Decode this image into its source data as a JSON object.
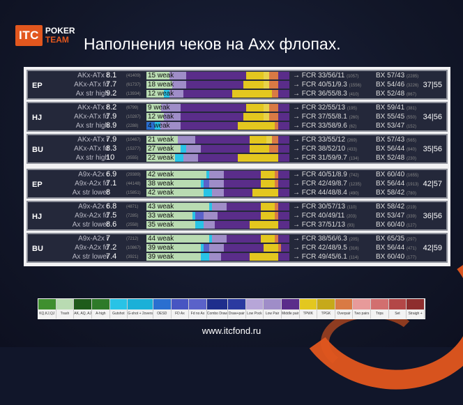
{
  "header": {
    "logo_itc": "ITC",
    "logo_line1": "POKER",
    "logo_line2": "TEAM",
    "title": "Наполнения чеков на Axx флопах."
  },
  "footer": {
    "url": "www.itcfond.ru"
  },
  "colors": {
    "weak": "#b9dbb2",
    "gutshot": "#29c3e6",
    "oesd": "#2a6fd0",
    "fd": "#5a62c9",
    "lowpair": "#9f8dc8",
    "midpair": "#5a2d8a",
    "tpwk": "#e3c71f",
    "tpgk": "#e8d24a",
    "overpair": "#d97a44"
  },
  "groups": [
    {
      "position": "EP",
      "pct": "37|55",
      "rows": [
        {
          "label": "AKx-ATx r",
          "value": "8.1",
          "count": "(41409)",
          "weak": "15 weak",
          "fcr": "→ FCR 33/56/11",
          "fcr_n": "(1057)",
          "bx": "BX 57/43",
          "bx_n": "(2285)",
          "segments": [
            {
              "c": "weak",
              "w": 16
            },
            {
              "c": "lowpair",
              "w": 12
            },
            {
              "c": "midpair",
              "w": 42
            },
            {
              "c": "tpwk",
              "w": 12
            },
            {
              "c": "tpgk",
              "w": 4
            },
            {
              "c": "overpair",
              "w": 6
            },
            {
              "c": "midpair",
              "w": 8
            }
          ]
        },
        {
          "label": "AKx-ATx fd",
          "value": "7.7",
          "count": "(61737)",
          "weak": "18 weak",
          "fcr": "→ FCR 40/51/9.3",
          "fcr_n": "(1556)",
          "bx": "BX 54/46",
          "bx_n": "(3226)",
          "segments": [
            {
              "c": "weak",
              "w": 18
            },
            {
              "c": "lowpair",
              "w": 10
            },
            {
              "c": "midpair",
              "w": 40
            },
            {
              "c": "tpwk",
              "w": 14
            },
            {
              "c": "tpgk",
              "w": 4
            },
            {
              "c": "overpair",
              "w": 6
            },
            {
              "c": "midpair",
              "w": 8
            }
          ]
        },
        {
          "label": "Ax str high",
          "value": "9.2",
          "count": "(13934)",
          "weak": "12 weak",
          "fcr": "→ FCR 36/55/8.3",
          "fcr_n": "(410)",
          "bx": "BX 52/48",
          "bx_n": "(867)",
          "segments": [
            {
              "c": "weak",
              "w": 12
            },
            {
              "c": "gutshot",
              "w": 4
            },
            {
              "c": "lowpair",
              "w": 10
            },
            {
              "c": "midpair",
              "w": 34
            },
            {
              "c": "tpwk",
              "w": 28
            },
            {
              "c": "overpair",
              "w": 4
            },
            {
              "c": "midpair",
              "w": 8
            }
          ]
        }
      ]
    },
    {
      "position": "HJ",
      "pct": "34|56",
      "rows": [
        {
          "label": "AKx-ATx r",
          "value": "8.2",
          "count": "(6799)",
          "weak": "9 weak",
          "fcr": "→ FCR 32/55/13",
          "fcr_n": "(195)",
          "bx": "BX 59/41",
          "bx_n": "(381)",
          "segments": [
            {
              "c": "weak",
              "w": 10
            },
            {
              "c": "lowpair",
              "w": 14
            },
            {
              "c": "midpair",
              "w": 46
            },
            {
              "c": "tpwk",
              "w": 12
            },
            {
              "c": "tpgk",
              "w": 4
            },
            {
              "c": "overpair",
              "w": 6
            },
            {
              "c": "midpair",
              "w": 8
            }
          ]
        },
        {
          "label": "AKx-ATx fd",
          "value": "7.9",
          "count": "(10287)",
          "weak": "12 weak",
          "fcr": "→ FCR 37/55/8.1",
          "fcr_n": "(260)",
          "bx": "BX 55/45",
          "bx_n": "(550)",
          "segments": [
            {
              "c": "weak",
              "w": 12
            },
            {
              "c": "lowpair",
              "w": 12
            },
            {
              "c": "midpair",
              "w": 44
            },
            {
              "c": "tpwk",
              "w": 14
            },
            {
              "c": "tpgk",
              "w": 4
            },
            {
              "c": "overpair",
              "w": 6
            },
            {
              "c": "midpair",
              "w": 8
            }
          ]
        },
        {
          "label": "Ax str high",
          "value": "8.9",
          "count": "(2288)",
          "weak": "4 weak",
          "fcr": "→ FCR 33/58/9.6",
          "fcr_n": "(62)",
          "bx": "BX 53/47",
          "bx_n": "(152)",
          "segments": [
            {
              "c": "oesd",
              "w": 6
            },
            {
              "c": "gutshot",
              "w": 4
            },
            {
              "c": "lowpair",
              "w": 14
            },
            {
              "c": "midpair",
              "w": 40
            },
            {
              "c": "tpwk",
              "w": 26
            },
            {
              "c": "overpair",
              "w": 2
            },
            {
              "c": "midpair",
              "w": 8
            }
          ]
        }
      ]
    },
    {
      "position": "BU",
      "pct": "35|56",
      "rows": [
        {
          "label": "AKx-ATx r",
          "value": "7.9",
          "count": "(10467)",
          "weak": "21 weak",
          "fcr": "→ FCR 33/55/12",
          "fcr_n": "(269)",
          "bx": "BX 57/43",
          "bx_n": "(565)",
          "segments": [
            {
              "c": "weak",
              "w": 22
            },
            {
              "c": "lowpair",
              "w": 12
            },
            {
              "c": "midpair",
              "w": 38
            },
            {
              "c": "tpwk",
              "w": 12
            },
            {
              "c": "tpgk",
              "w": 4
            },
            {
              "c": "overpair",
              "w": 4
            },
            {
              "c": "midpair",
              "w": 8
            }
          ]
        },
        {
          "label": "AKx-ATx fd",
          "value": "8.3",
          "count": "(15377)",
          "weak": "27 weak",
          "fcr": "→ FCR 38/52/10",
          "fcr_n": "(433)",
          "bx": "BX 56/44",
          "bx_n": "(840)",
          "segments": [
            {
              "c": "weak",
              "w": 24
            },
            {
              "c": "gutshot",
              "w": 4
            },
            {
              "c": "lowpair",
              "w": 10
            },
            {
              "c": "midpair",
              "w": 34
            },
            {
              "c": "tpwk",
              "w": 14
            },
            {
              "c": "overpair",
              "w": 6
            },
            {
              "c": "midpair",
              "w": 8
            }
          ]
        },
        {
          "label": "Ax str high",
          "value": "10",
          "count": "(3555)",
          "weak": "22 weak",
          "fcr": "→ FCR 31/59/9.7",
          "fcr_n": "(134)",
          "bx": "BX 52/48",
          "bx_n": "(230)",
          "segments": [
            {
              "c": "weak",
              "w": 20
            },
            {
              "c": "gutshot",
              "w": 6
            },
            {
              "c": "lowpair",
              "w": 10
            },
            {
              "c": "midpair",
              "w": 28
            },
            {
              "c": "tpwk",
              "w": 28
            },
            {
              "c": "midpair",
              "w": 8
            }
          ]
        }
      ]
    },
    {
      "position": "EP",
      "pct": "42|57",
      "rows": [
        {
          "label": "A9x-A2x r",
          "value": "6.9",
          "count": "(29389)",
          "weak": "42 weak",
          "fcr": "→ FCR 40/51/8.9",
          "fcr_n": "(742)",
          "bx": "BX 60/40",
          "bx_n": "(1655)",
          "segments": [
            {
              "c": "weak",
              "w": 42
            },
            {
              "c": "gutshot",
              "w": 2
            },
            {
              "c": "lowpair",
              "w": 10
            },
            {
              "c": "midpair",
              "w": 26
            },
            {
              "c": "tpwk",
              "w": 10
            },
            {
              "c": "overpair",
              "w": 2
            },
            {
              "c": "midpair",
              "w": 8
            }
          ]
        },
        {
          "label": "A9x-A2x fd",
          "value": "7.1",
          "count": "(44148)",
          "weak": "38 weak",
          "fcr": "→ FCR 42/49/8.7",
          "fcr_n": "(1235)",
          "bx": "BX 56/44",
          "bx_n": "(1913)",
          "segments": [
            {
              "c": "weak",
              "w": 38
            },
            {
              "c": "gutshot",
              "w": 2
            },
            {
              "c": "fd",
              "w": 4
            },
            {
              "c": "lowpair",
              "w": 10
            },
            {
              "c": "midpair",
              "w": 26
            },
            {
              "c": "tpwk",
              "w": 10
            },
            {
              "c": "overpair",
              "w": 2
            },
            {
              "c": "midpair",
              "w": 8
            }
          ]
        },
        {
          "label": "Ax str lower",
          "value": "8",
          "count": "(15851)",
          "weak": "42 weak",
          "fcr": "→ FCR 44/48/8.4",
          "fcr_n": "(490)",
          "bx": "BX 58/42",
          "bx_n": "(780)",
          "segments": [
            {
              "c": "weak",
              "w": 40
            },
            {
              "c": "gutshot",
              "w": 6
            },
            {
              "c": "lowpair",
              "w": 8
            },
            {
              "c": "midpair",
              "w": 20
            },
            {
              "c": "tpwk",
              "w": 18
            },
            {
              "c": "midpair",
              "w": 8
            }
          ]
        }
      ]
    },
    {
      "position": "HJ",
      "pct": "36|56",
      "rows": [
        {
          "label": "A9x-A2x r",
          "value": "6.8",
          "count": "(4871)",
          "weak": "43 weak",
          "fcr": "→ FCR 30/57/13",
          "fcr_n": "(110)",
          "bx": "BX 58/42",
          "bx_n": "(219)",
          "segments": [
            {
              "c": "weak",
              "w": 44
            },
            {
              "c": "gutshot",
              "w": 2
            },
            {
              "c": "lowpair",
              "w": 10
            },
            {
              "c": "midpair",
              "w": 24
            },
            {
              "c": "tpwk",
              "w": 10
            },
            {
              "c": "overpair",
              "w": 2
            },
            {
              "c": "midpair",
              "w": 8
            }
          ]
        },
        {
          "label": "A9x-A2x fd",
          "value": "7.5",
          "count": "(7285)",
          "weak": "33 weak",
          "fcr": "→ FCR 40/49/11",
          "fcr_n": "(203)",
          "bx": "BX 53/47",
          "bx_n": "(339)",
          "segments": [
            {
              "c": "weak",
              "w": 32
            },
            {
              "c": "gutshot",
              "w": 2
            },
            {
              "c": "fd",
              "w": 6
            },
            {
              "c": "lowpair",
              "w": 10
            },
            {
              "c": "midpair",
              "w": 30
            },
            {
              "c": "tpwk",
              "w": 10
            },
            {
              "c": "overpair",
              "w": 2
            },
            {
              "c": "midpair",
              "w": 8
            }
          ]
        },
        {
          "label": "Ax str lower",
          "value": "8.6",
          "count": "(2558)",
          "weak": "35 weak",
          "fcr": "→ FCR 37/51/13",
          "fcr_n": "(93)",
          "bx": "BX 60/40",
          "bx_n": "(127)",
          "segments": [
            {
              "c": "weak",
              "w": 34
            },
            {
              "c": "gutshot",
              "w": 6
            },
            {
              "c": "lowpair",
              "w": 8
            },
            {
              "c": "midpair",
              "w": 24
            },
            {
              "c": "tpwk",
              "w": 20
            },
            {
              "c": "midpair",
              "w": 8
            }
          ]
        }
      ]
    },
    {
      "position": "BU",
      "pct": "42|59",
      "rows": [
        {
          "label": "A9x-A2x r",
          "value": "7",
          "count": "(7212)",
          "weak": "44 weak",
          "fcr": "→ FCR 38/56/6.3",
          "fcr_n": "(205)",
          "bx": "BX 65/35",
          "bx_n": "(297)",
          "segments": [
            {
              "c": "weak",
              "w": 44
            },
            {
              "c": "gutshot",
              "w": 2
            },
            {
              "c": "lowpair",
              "w": 10
            },
            {
              "c": "midpair",
              "w": 24
            },
            {
              "c": "tpwk",
              "w": 10
            },
            {
              "c": "overpair",
              "w": 2
            },
            {
              "c": "midpair",
              "w": 8
            }
          ]
        },
        {
          "label": "A9x-A2x fd",
          "value": "7.2",
          "count": "(10867)",
          "weak": "39 weak",
          "fcr": "→ FCR 42/48/9.5",
          "fcr_n": "(316)",
          "bx": "BX 56/44",
          "bx_n": "(471)",
          "segments": [
            {
              "c": "weak",
              "w": 38
            },
            {
              "c": "gutshot",
              "w": 2
            },
            {
              "c": "fd",
              "w": 4
            },
            {
              "c": "lowpair",
              "w": 10
            },
            {
              "c": "midpair",
              "w": 28
            },
            {
              "c": "tpwk",
              "w": 10
            },
            {
              "c": "overpair",
              "w": 2
            },
            {
              "c": "midpair",
              "w": 6
            }
          ]
        },
        {
          "label": "Ax str lower",
          "value": "7.4",
          "count": "(3921)",
          "weak": "39 weak",
          "fcr": "→ FCR 49/45/6.1",
          "fcr_n": "(114)",
          "bx": "BX 60/40",
          "bx_n": "(177)",
          "segments": [
            {
              "c": "weak",
              "w": 38
            },
            {
              "c": "gutshot",
              "w": 6
            },
            {
              "c": "lowpair",
              "w": 8
            },
            {
              "c": "midpair",
              "w": 20
            },
            {
              "c": "tpwk",
              "w": 20
            },
            {
              "c": "midpair",
              "w": 8
            }
          ]
        }
      ]
    }
  ],
  "legend": [
    {
      "label": "KQ,KJ,QJ",
      "color": "#3f8f2f"
    },
    {
      "label": "Trash",
      "color": "#b9dbb2"
    },
    {
      "label": "AK, AQ, AJ",
      "color": "#1e5b1a"
    },
    {
      "label": "A-high",
      "color": "#2e7a29"
    },
    {
      "label": "Gutshot",
      "color": "#29c3e6"
    },
    {
      "label": "G-shot + 2overs",
      "color": "#1ab0d8"
    },
    {
      "label": "OESD",
      "color": "#2a6fd0"
    },
    {
      "label": "FD Ax",
      "color": "#4755c2"
    },
    {
      "label": "Fd no Ax",
      "color": "#5a62c9"
    },
    {
      "label": "Combo Draw",
      "color": "#1e2e8c"
    },
    {
      "label": "Draw+pair",
      "color": "#2b3aa0"
    },
    {
      "label": "Low Pock",
      "color": "#b7a6d8"
    },
    {
      "label": "Low Pair",
      "color": "#9f8dc8"
    },
    {
      "label": "Middle pair",
      "color": "#5a2d8a"
    },
    {
      "label": "TPWK",
      "color": "#e3c71f"
    },
    {
      "label": "TPGK",
      "color": "#c6a91a"
    },
    {
      "label": "Overpair",
      "color": "#d97a44"
    },
    {
      "label": "Two pairs",
      "color": "#e79a9a"
    },
    {
      "label": "Trips",
      "color": "#d26f6f"
    },
    {
      "label": "Set",
      "color": "#b34747"
    },
    {
      "label": "Straigh +",
      "color": "#8e2e2e"
    }
  ]
}
